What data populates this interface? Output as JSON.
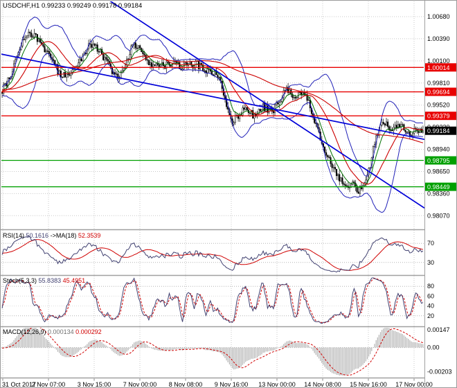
{
  "header": {
    "title": "USDCHF,H1 0.99233 0.99249 0.99178 0.99184"
  },
  "colors": {
    "background": "#ffffff",
    "grid": "#c8c8c8",
    "level_dots": "#b4b4b4",
    "resistance": "#e80000",
    "support": "#00a000",
    "trendline": "#0000d8",
    "bollinger": "#2020b8",
    "ma_red": "#cc0000",
    "ma_green": "#007000",
    "candle_bull": "#ffffff",
    "candle_bear": "#000000",
    "candle_outline": "#000000",
    "current_price_box": "#000000",
    "indicator_main": "#404070",
    "indicator_signal": "#d00000",
    "macd_histogram": "#b4b4b4",
    "axis_text": "#000000",
    "separator": "#a0a0a0"
  },
  "chart_data": {
    "type": "candlestick",
    "symbol": "USDCHF",
    "timeframe": "H1",
    "current_bar": {
      "open": "0.99233",
      "high": "0.99249",
      "low": "0.99178",
      "close": "0.99184"
    },
    "x_axis": {
      "labels": [
        "31 Oct 2017",
        "2 Nov 07:00",
        "3 Nov 15:00",
        "7 Nov 00:00",
        "8 Nov 08:00",
        "9 Nov 16:00",
        "13 Nov 00:00",
        "14 Nov 08:00",
        "15 Nov 16:00",
        "17 Nov 00:00"
      ]
    },
    "main": {
      "y_range": [
        0.979,
        1.0088
      ],
      "y_ticks": [
        {
          "value": 1.0068,
          "label": "1.00680"
        },
        {
          "value": 1.0039,
          "label": "1.00390"
        },
        {
          "value": 1.001,
          "label": "1.00100"
        },
        {
          "value": 0.9981,
          "label": "0.99810"
        },
        {
          "value": 0.9952,
          "label": "0.99520"
        },
        {
          "value": 0.9923,
          "label": "0.99230"
        },
        {
          "value": 0.9894,
          "label": "0.98940"
        },
        {
          "value": 0.9865,
          "label": "0.98650"
        },
        {
          "value": 0.9836,
          "label": "0.98360"
        },
        {
          "value": 0.9807,
          "label": "0.98070"
        }
      ],
      "levels": {
        "resistance": [
          {
            "value": 1.00014,
            "label": "1.00014"
          },
          {
            "value": 0.99694,
            "label": "0.99694"
          },
          {
            "value": 0.99379,
            "label": "0.99379"
          }
        ],
        "support": [
          {
            "value": 0.98795,
            "label": "0.98795"
          },
          {
            "value": 0.98449,
            "label": "0.98449"
          }
        ],
        "current": {
          "value": 0.99184,
          "label": "0.99184"
        }
      },
      "trendlines": [
        {
          "x0": 0.0,
          "v0": 1.0019,
          "x1": 1.0,
          "v1": 0.9907
        },
        {
          "x0": 0.0,
          "v0": 1.0183,
          "x1": 1.0,
          "v1": 0.9817
        }
      ],
      "candle_count": 288,
      "price_path": [
        [
          0.0,
          0.9972
        ],
        [
          0.02,
          0.999
        ],
        [
          0.05,
          1.0038
        ],
        [
          0.07,
          1.0046
        ],
        [
          0.09,
          1.0035
        ],
        [
          0.11,
          1.0018
        ],
        [
          0.14,
          0.999
        ],
        [
          0.16,
          0.9992
        ],
        [
          0.185,
          1.0012
        ],
        [
          0.205,
          1.003
        ],
        [
          0.225,
          1.0028
        ],
        [
          0.245,
          1.0012
        ],
        [
          0.265,
          0.999
        ],
        [
          0.285,
          0.9992
        ],
        [
          0.31,
          1.0034
        ],
        [
          0.325,
          1.0028
        ],
        [
          0.345,
          1.001
        ],
        [
          0.37,
          1.0002
        ],
        [
          0.4,
          1.0006
        ],
        [
          0.43,
          1.0002
        ],
        [
          0.46,
          1.0006
        ],
        [
          0.49,
          0.9998
        ],
        [
          0.515,
          0.9992
        ],
        [
          0.53,
          0.9958
        ],
        [
          0.545,
          0.9928
        ],
        [
          0.56,
          0.9938
        ],
        [
          0.58,
          0.9948
        ],
        [
          0.6,
          0.9936
        ],
        [
          0.62,
          0.995
        ],
        [
          0.64,
          0.9942
        ],
        [
          0.66,
          0.9958
        ],
        [
          0.675,
          0.9972
        ],
        [
          0.695,
          0.9965
        ],
        [
          0.715,
          0.9968
        ],
        [
          0.73,
          0.9952
        ],
        [
          0.745,
          0.9928
        ],
        [
          0.76,
          0.99
        ],
        [
          0.775,
          0.9882
        ],
        [
          0.79,
          0.9868
        ],
        [
          0.805,
          0.9852
        ],
        [
          0.818,
          0.9843
        ],
        [
          0.832,
          0.9852
        ],
        [
          0.846,
          0.984
        ],
        [
          0.86,
          0.9852
        ],
        [
          0.872,
          0.9868
        ],
        [
          0.884,
          0.9902
        ],
        [
          0.896,
          0.9922
        ],
        [
          0.91,
          0.9928
        ],
        [
          0.925,
          0.9917
        ],
        [
          0.94,
          0.9927
        ],
        [
          0.955,
          0.9924
        ],
        [
          0.97,
          0.9913
        ],
        [
          0.985,
          0.9921
        ],
        [
          1.0,
          0.99184
        ]
      ]
    },
    "indicators": {
      "rsi": {
        "name": "RSI(14)",
        "value": "50.1616",
        "ma_name": "->MA(18)",
        "ma_value": "52.3539",
        "period": 14,
        "ma_period": 18,
        "levels": [
          70,
          30
        ],
        "range": [
          5,
          95
        ]
      },
      "stochastic": {
        "name": "Stoch(5,3,3)",
        "k_value": "55.8383",
        "d_value": "45.4951",
        "k_period": 5,
        "slowing": 3,
        "d_period": 3,
        "ticks": [
          80,
          60,
          40,
          20
        ],
        "levels": [
          80,
          20
        ],
        "range": [
          0,
          100
        ]
      },
      "macd": {
        "name": "MACD(12,26,9)",
        "value": "0.000134",
        "signal_value": "0.000292",
        "fast": 12,
        "slow": 26,
        "signal": 9,
        "ticks": [
          {
            "value": 0.00147,
            "label": "0.00147"
          },
          {
            "value": 0.0,
            "label": "0.00"
          },
          {
            "value": -0.00203,
            "label": "-0.00203"
          }
        ],
        "range": [
          -0.00245,
          0.00165
        ]
      }
    }
  }
}
